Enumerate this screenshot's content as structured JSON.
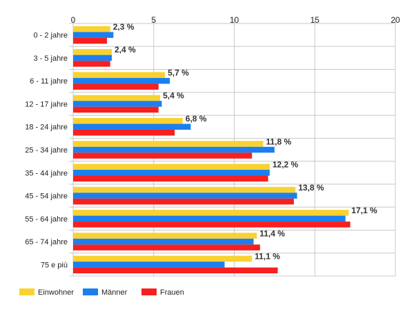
{
  "chart_data": {
    "type": "bar",
    "orientation": "horizontal",
    "categories": [
      "0 - 2 jahre",
      "3 - 5 jahre",
      "6 - 11 jahre",
      "12 - 17 jahre",
      "18 - 24 jahre",
      "25 - 34 jahre",
      "35 - 44 jahre",
      "45 - 54 jahre",
      "55 - 64 jahre",
      "65 - 74 jahre",
      "75 e più"
    ],
    "series": [
      {
        "name": "Einwohner",
        "color": "#f9d231",
        "values": [
          2.3,
          2.4,
          5.7,
          5.4,
          6.8,
          11.8,
          12.2,
          13.8,
          17.1,
          11.4,
          11.1
        ]
      },
      {
        "name": "Männer",
        "color": "#1b7ff0",
        "values": [
          2.5,
          2.4,
          6.0,
          5.5,
          7.3,
          12.5,
          12.2,
          13.9,
          16.9,
          11.2,
          9.4
        ]
      },
      {
        "name": "Frauen",
        "color": "#f71f1f",
        "values": [
          2.1,
          2.3,
          5.3,
          5.3,
          6.3,
          11.1,
          12.1,
          13.7,
          17.2,
          11.6,
          12.7
        ]
      }
    ],
    "data_labels": [
      "2,3 %",
      "2,4 %",
      "5,7 %",
      "5,4 %",
      "6,8 %",
      "11,8 %",
      "12,2 %",
      "13,8 %",
      "17,1 %",
      "11,4 %",
      "11,1 %"
    ],
    "xlim": [
      0,
      20
    ],
    "xticks": [
      0,
      5,
      10,
      15,
      20
    ],
    "xtick_labels": [
      "0",
      "5",
      "10",
      "15",
      "20"
    ],
    "xaxis_position": "top",
    "grid": true,
    "legend_position": "bottom-left"
  }
}
